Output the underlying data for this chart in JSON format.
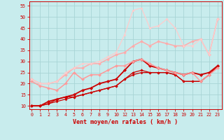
{
  "xlabel": "Vent moyen/en rafales ( km/h )",
  "bg_color": "#c8eced",
  "grid_color": "#a8d5d6",
  "x_ticks": [
    0,
    1,
    2,
    3,
    4,
    5,
    6,
    7,
    8,
    9,
    10,
    12,
    13,
    14,
    15,
    16,
    17,
    18,
    19,
    20,
    21,
    22,
    23
  ],
  "x_positions": [
    0,
    1,
    2,
    3,
    4,
    5,
    6,
    7,
    8,
    9,
    10,
    11,
    12,
    13,
    14,
    15,
    16,
    17,
    18,
    19,
    20,
    21,
    22
  ],
  "ylim": [
    8.5,
    57
  ],
  "xlim": [
    -0.3,
    22.5
  ],
  "series": [
    {
      "y": [
        10,
        10,
        11,
        13,
        14,
        14,
        15,
        16,
        17,
        18,
        19,
        22,
        25,
        26,
        25,
        25,
        25,
        24,
        21,
        21,
        21,
        24,
        28
      ],
      "color": "#cc0000",
      "lw": 0.9,
      "marker": "D",
      "ms": 1.8
    },
    {
      "y": [
        10,
        10,
        11,
        12,
        13,
        14,
        15,
        16,
        17,
        18,
        19,
        22,
        24,
        25,
        25,
        25,
        25,
        24,
        21,
        21,
        21,
        24,
        28
      ],
      "color": "#cc0000",
      "lw": 0.9,
      "marker": "D",
      "ms": 1.6
    },
    {
      "y": [
        10,
        10,
        12,
        13,
        14,
        15,
        17,
        18,
        20,
        21,
        22,
        26,
        30,
        31,
        28,
        27,
        26,
        25,
        24,
        25,
        24,
        25,
        28
      ],
      "color": "#cc0000",
      "lw": 1.3,
      "marker": "D",
      "ms": 2.2
    },
    {
      "y": [
        21,
        19,
        18,
        17,
        20,
        25,
        22,
        24,
        24,
        26,
        28,
        28,
        30,
        31,
        29,
        27,
        26,
        25,
        24,
        25,
        21,
        24,
        27
      ],
      "color": "#ff9999",
      "lw": 1.1,
      "marker": "D",
      "ms": 2.0
    },
    {
      "y": [
        22,
        20,
        20,
        21,
        24,
        27,
        27,
        29,
        29,
        31,
        33,
        34,
        37,
        39,
        37,
        39,
        38,
        37,
        37,
        39,
        40,
        33,
        49
      ],
      "color": "#ffaaaa",
      "lw": 1.1,
      "marker": "D",
      "ms": 2.0
    },
    {
      "y": [
        22,
        20,
        20,
        21,
        25,
        27,
        29,
        29,
        30,
        32,
        34,
        42,
        53,
        54,
        45,
        46,
        49,
        45,
        37,
        37,
        40,
        33,
        49
      ],
      "color": "#ffcccc",
      "lw": 0.9,
      "marker": "D",
      "ms": 1.6
    }
  ]
}
